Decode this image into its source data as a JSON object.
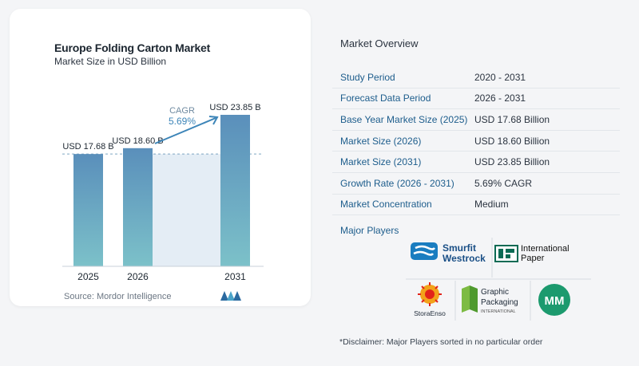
{
  "chart_data": {
    "type": "bar",
    "title": "Europe Folding Carton Market",
    "subtitle": "Market Size in USD Billion",
    "categories": [
      "2025",
      "2026",
      "2031"
    ],
    "values": [
      17.68,
      18.6,
      23.85
    ],
    "value_labels": [
      "USD 17.68 B",
      "USD 18.60 B",
      "USD 23.85 B"
    ],
    "cagr_label": "CAGR",
    "cagr_value": "5.69%",
    "bar_color": "#5f97bd",
    "grid": false
  },
  "source": "Source:  Mordor Intelligence",
  "overview": {
    "title": "Market Overview",
    "rows": [
      {
        "key": "Study Period",
        "value": "2020 - 2031"
      },
      {
        "key": "Forecast Data Period",
        "value": "2026 - 2031"
      },
      {
        "key": "Base Year Market Size (2025)",
        "value": "USD 17.68 Billion"
      },
      {
        "key": "Market Size (2026)",
        "value": "USD 18.60 Billion"
      },
      {
        "key": "Market Size (2031)",
        "value": "USD 23.85 Billion"
      },
      {
        "key": "Growth Rate (2026 - 2031)",
        "value": "5.69% CAGR"
      },
      {
        "key": "Market Concentration",
        "value": "Medium"
      }
    ]
  },
  "players": {
    "label": "Major Players",
    "logos": [
      {
        "name": "smurfit-westrock-logo",
        "lines": [
          "Smurfit",
          "Westrock"
        ]
      },
      {
        "name": "international-paper-logo",
        "lines": [
          "International",
          "Paper"
        ]
      },
      {
        "name": "stora-enso-logo",
        "lines": [
          "StoraEnso"
        ]
      },
      {
        "name": "graphic-packaging-logo",
        "lines": [
          "Graphic",
          "Packaging",
          "INTERNATIONAL"
        ]
      },
      {
        "name": "mm-logo",
        "lines": [
          "MM"
        ]
      }
    ]
  },
  "disclaimer": "*Disclaimer: Major Players sorted in no particular order"
}
